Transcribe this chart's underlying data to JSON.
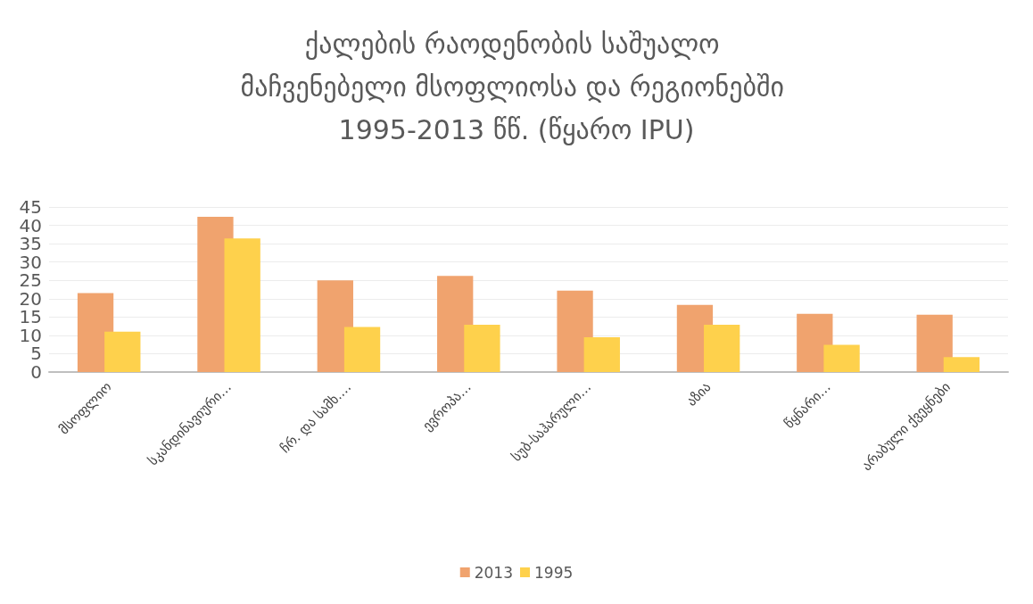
{
  "chart_data": {
    "type": "bar",
    "title": "ქალების რაოდენობის საშუალო მაჩვენებელი მსოფლიოსა და რეგიონებში 1995-2013 წწ. (წყარო IPU)",
    "categories": [
      "მსოფლიო",
      "სკანდინავიური…",
      "ჩრ. და სამხ.…",
      "ევროპა…",
      "სუბ-საჰარული…",
      "აზია",
      "წყნარი…",
      "არაბული ქვეყნები"
    ],
    "series": [
      {
        "name": "2013",
        "color": "#f0a36e",
        "values": [
          21.5,
          42.3,
          25.0,
          26.2,
          22.2,
          18.3,
          15.9,
          15.6
        ]
      },
      {
        "name": "1995",
        "color": "#fed14c",
        "values": [
          11.0,
          36.4,
          12.3,
          12.9,
          9.5,
          12.9,
          7.4,
          4.1
        ]
      }
    ],
    "ylim": [
      0,
      45
    ],
    "yticks": [
      0,
      5,
      10,
      15,
      20,
      25,
      30,
      35,
      40,
      45
    ],
    "grid": "y",
    "legend": "bottom"
  }
}
